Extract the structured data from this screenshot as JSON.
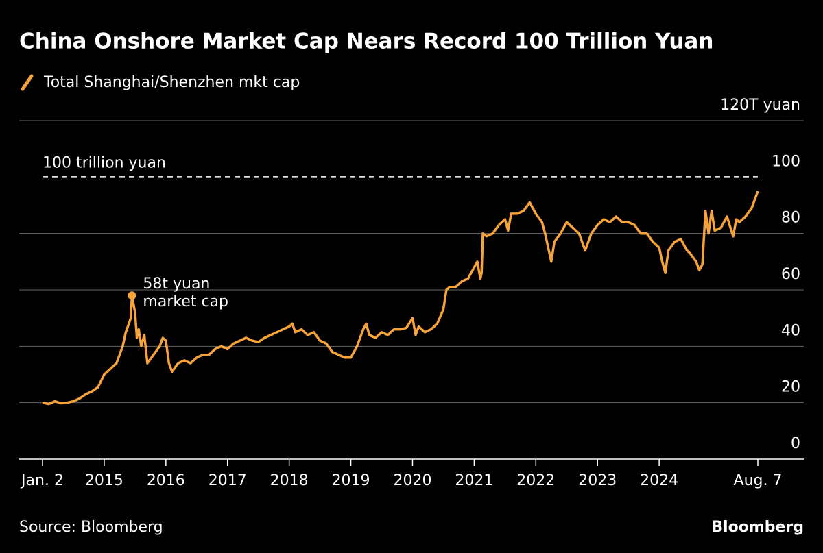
{
  "chart_data": {
    "type": "line",
    "title": "China Onshore Market Cap Nears Record 100 Trillion Yuan",
    "source": "Source: Bloomberg",
    "brand": "Bloomberg",
    "x": [
      2014.0,
      2014.1,
      2014.2,
      2014.3,
      2014.4,
      2014.5,
      2014.6,
      2014.7,
      2014.8,
      2014.9,
      2015.0,
      2015.1,
      2015.15,
      2015.2,
      2015.3,
      2015.35,
      2015.4,
      2015.43,
      2015.45,
      2015.5,
      2015.53,
      2015.56,
      2015.6,
      2015.65,
      2015.7,
      2015.8,
      2015.9,
      2015.95,
      2016.0,
      2016.05,
      2016.1,
      2016.2,
      2016.3,
      2016.4,
      2016.5,
      2016.6,
      2016.7,
      2016.8,
      2016.9,
      2017.0,
      2017.1,
      2017.2,
      2017.3,
      2017.4,
      2017.5,
      2017.6,
      2017.7,
      2017.8,
      2017.9,
      2018.0,
      2018.05,
      2018.1,
      2018.2,
      2018.3,
      2018.4,
      2018.5,
      2018.6,
      2018.7,
      2018.8,
      2018.9,
      2019.0,
      2019.1,
      2019.2,
      2019.25,
      2019.3,
      2019.4,
      2019.5,
      2019.6,
      2019.7,
      2019.8,
      2019.9,
      2020.0,
      2020.05,
      2020.1,
      2020.2,
      2020.3,
      2020.4,
      2020.5,
      2020.55,
      2020.6,
      2020.7,
      2020.8,
      2020.9,
      2021.0,
      2021.05,
      2021.1,
      2021.12,
      2021.14,
      2021.2,
      2021.3,
      2021.4,
      2021.5,
      2021.55,
      2021.6,
      2021.7,
      2021.8,
      2021.9,
      2022.0,
      2022.1,
      2022.15,
      2022.2,
      2022.25,
      2022.3,
      2022.4,
      2022.5,
      2022.6,
      2022.7,
      2022.8,
      2022.9,
      2023.0,
      2023.1,
      2023.2,
      2023.3,
      2023.4,
      2023.5,
      2023.6,
      2023.7,
      2023.8,
      2023.9,
      2024.0,
      2024.05,
      2024.1,
      2024.15,
      2024.25,
      2024.35,
      2024.45,
      2024.5,
      2024.6,
      2024.65,
      2024.7,
      2024.75,
      2024.8,
      2024.85,
      2024.9,
      2025.0,
      2025.1,
      2025.2,
      2025.25,
      2025.3,
      2025.4,
      2025.5,
      2025.6
    ],
    "series": [
      {
        "name": "Total Shanghai/Shenzhen mkt cap",
        "color": "#f7a33c",
        "values": [
          20,
          19.5,
          20.5,
          19.8,
          20,
          20.5,
          21.5,
          23,
          24,
          25.5,
          30,
          32,
          33,
          34,
          40,
          45,
          48,
          50,
          58,
          52,
          43,
          46,
          40,
          44,
          34,
          37,
          40,
          43,
          42,
          34,
          31,
          34,
          35,
          34,
          36,
          37,
          37,
          39,
          40,
          39,
          41,
          42,
          43,
          42,
          41.5,
          43,
          44,
          45,
          46,
          47,
          48,
          45,
          46,
          44,
          45,
          42,
          41,
          38,
          37,
          36,
          36,
          40,
          46,
          48,
          44,
          43,
          45,
          44,
          46,
          46,
          46.5,
          50,
          44,
          47,
          45,
          46,
          48,
          53,
          60,
          61,
          61,
          63,
          64,
          68,
          70,
          64,
          66,
          80,
          79,
          80,
          83,
          85,
          81,
          87,
          87,
          88,
          91,
          87,
          84,
          80,
          75,
          70,
          77,
          80,
          84,
          82,
          80,
          74,
          80,
          83,
          85,
          84,
          86,
          84,
          84,
          83,
          80,
          80,
          77,
          75,
          70,
          66,
          74,
          77,
          78,
          74,
          73,
          70,
          67,
          69,
          88,
          80,
          88,
          81,
          82,
          86,
          79,
          85,
          84,
          86,
          89,
          95
        ]
      }
    ],
    "xlim": [
      2014.0,
      2025.6
    ],
    "xticks": [
      {
        "value": 2014.0,
        "label": "Jan. 2"
      },
      2015,
      2016,
      2017,
      2018,
      2019,
      2020,
      2021,
      2022,
      2023,
      2024,
      {
        "value": 2025.6,
        "label": "Aug. 7"
      }
    ],
    "ylim": [
      0,
      120
    ],
    "yticks": [
      0,
      20,
      40,
      60,
      80,
      100,
      {
        "value": 120,
        "label": "120T yuan"
      }
    ],
    "grid": true,
    "reference_line": {
      "value": 100,
      "label": "100 trillion yuan"
    },
    "annotation": {
      "x": 2015.45,
      "y": 58,
      "lines": [
        "58t yuan",
        "market cap"
      ]
    }
  }
}
